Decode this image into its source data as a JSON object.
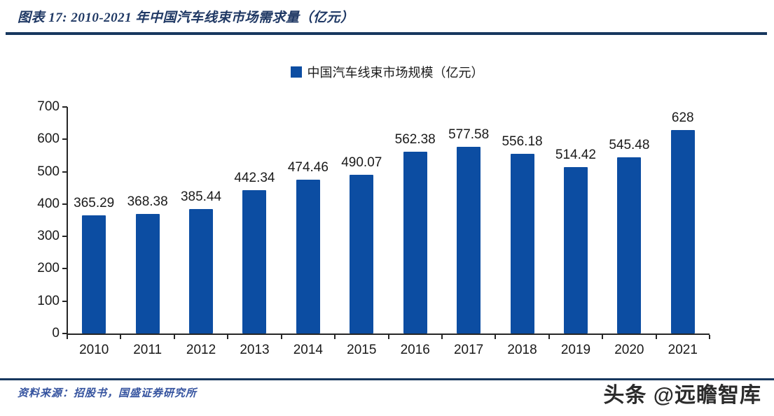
{
  "header": {
    "title": "图表 17:  2010-2021 年中国汽车线束市场需求量（亿元）"
  },
  "legend": {
    "label": "中国汽车线束市场规模（亿元）",
    "swatch_color": "#0c4da2"
  },
  "chart_data": {
    "type": "bar",
    "title": "2010-2021 年中国汽车线束市场需求量（亿元）",
    "categories": [
      "2010",
      "2011",
      "2012",
      "2013",
      "2014",
      "2015",
      "2016",
      "2017",
      "2018",
      "2019",
      "2020",
      "2021"
    ],
    "values": [
      365.29,
      368.38,
      385.44,
      442.34,
      474.46,
      490.07,
      562.38,
      577.58,
      556.18,
      514.42,
      545.48,
      628
    ],
    "value_labels": [
      "365.29",
      "368.38",
      "385.44",
      "442.34",
      "474.46",
      "490.07",
      "562.38",
      "577.58",
      "556.18",
      "514.42",
      "545.48",
      "628"
    ],
    "series_name": "中国汽车线束市场规模（亿元）",
    "xlabel": "",
    "ylabel": "",
    "ylim": [
      0,
      700
    ],
    "ytick_step": 100,
    "bar_color": "#0c4da2",
    "grid": false,
    "legend_position": "top-center"
  },
  "footer": {
    "source": "资料来源：招股书，国盛证券研究所",
    "watermark": "头条 @远瞻智库"
  }
}
